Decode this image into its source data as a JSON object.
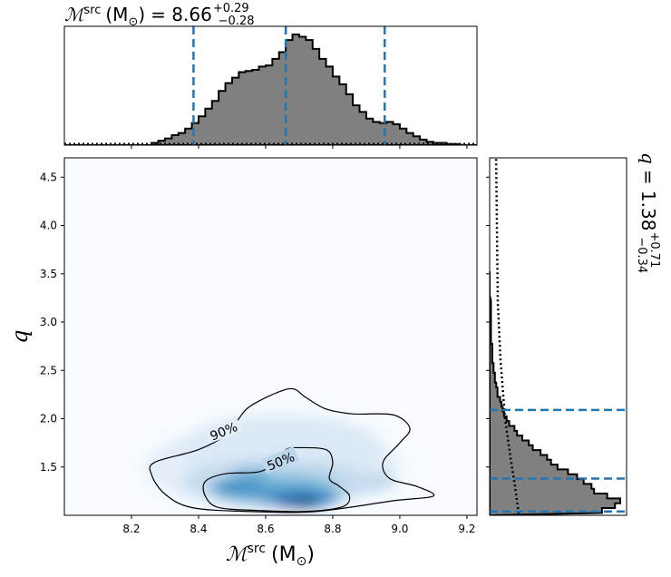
{
  "chart_data": {
    "type": "corner",
    "top_histogram": {
      "type": "histogram",
      "title_base": "ℳ",
      "title_sup": "src",
      "title_unit": "(M",
      "title_sun": "⊙",
      "title_close": ")",
      "title_eq": "= 8.66",
      "title_err_plus": "+0.29",
      "title_err_minus": "−0.28",
      "quantile_lines": [
        8.385,
        8.66,
        8.955
      ],
      "line_color": "#1f77b4",
      "fill_color": "#808080",
      "x": [
        7.99,
        8.01,
        8.03,
        8.05,
        8.07,
        8.09,
        8.11,
        8.13,
        8.15,
        8.17,
        8.19,
        8.21,
        8.23,
        8.25,
        8.27,
        8.29,
        8.31,
        8.33,
        8.35,
        8.37,
        8.39,
        8.41,
        8.43,
        8.45,
        8.47,
        8.49,
        8.51,
        8.53,
        8.55,
        8.57,
        8.59,
        8.61,
        8.63,
        8.65,
        8.67,
        8.69,
        8.71,
        8.73,
        8.75,
        8.77,
        8.79,
        8.81,
        8.83,
        8.85,
        8.87,
        8.89,
        8.91,
        8.93,
        8.95,
        8.97,
        8.99,
        9.01,
        9.03,
        9.05,
        9.07,
        9.09,
        9.11,
        9.13,
        9.15,
        9.17,
        9.19,
        9.21,
        9.23
      ],
      "density": [
        0.0,
        0.0,
        0.0,
        0.0,
        0.0,
        0.0,
        0.0,
        0.0,
        0.0,
        0.0,
        0.0,
        0.0,
        0.0,
        0.0,
        0.02,
        0.04,
        0.06,
        0.09,
        0.11,
        0.15,
        0.2,
        0.26,
        0.33,
        0.4,
        0.49,
        0.56,
        0.61,
        0.66,
        0.67,
        0.68,
        0.71,
        0.72,
        0.78,
        0.84,
        0.95,
        1.0,
        0.98,
        0.95,
        0.87,
        0.78,
        0.71,
        0.62,
        0.55,
        0.46,
        0.36,
        0.3,
        0.24,
        0.21,
        0.2,
        0.21,
        0.19,
        0.15,
        0.11,
        0.08,
        0.05,
        0.03,
        0.02,
        0.02,
        0.01,
        0.01,
        0.0,
        0.0,
        0.0
      ]
    },
    "joint": {
      "type": "heatmap",
      "xlabel_base": "ℳ",
      "xlabel_sup": "src",
      "xlabel_unit": "(M",
      "xlabel_sun": "⊙",
      "xlabel_close": ")",
      "ylabel": "q",
      "xlim": [
        8.0,
        9.23
      ],
      "ylim": [
        1.0,
        4.7
      ],
      "xticks": [
        "8.2",
        "8.4",
        "8.6",
        "8.8",
        "9.0",
        "9.2"
      ],
      "yticks": [
        "1.5",
        "2.0",
        "2.5",
        "3.0",
        "3.5",
        "4.0",
        "4.5"
      ],
      "contour_labels": [
        "90%",
        "50%"
      ],
      "contour_90": [
        [
          8.68,
          2.31
        ],
        [
          8.72,
          2.22
        ],
        [
          8.78,
          2.1
        ],
        [
          8.86,
          2.05
        ],
        [
          8.98,
          2.04
        ],
        [
          9.03,
          1.9
        ],
        [
          9.0,
          1.75
        ],
        [
          8.95,
          1.55
        ],
        [
          8.97,
          1.38
        ],
        [
          9.05,
          1.3
        ],
        [
          9.1,
          1.2
        ],
        [
          8.98,
          1.15
        ],
        [
          8.75,
          1.04
        ],
        [
          8.55,
          1.04
        ],
        [
          8.38,
          1.08
        ],
        [
          8.3,
          1.22
        ],
        [
          8.26,
          1.42
        ],
        [
          8.27,
          1.55
        ],
        [
          8.4,
          1.68
        ],
        [
          8.49,
          1.85
        ],
        [
          8.52,
          2.0
        ],
        [
          8.55,
          2.12
        ],
        [
          8.62,
          2.25
        ]
      ],
      "contour_50": [
        [
          8.7,
          1.7
        ],
        [
          8.78,
          1.68
        ],
        [
          8.8,
          1.55
        ],
        [
          8.79,
          1.38
        ],
        [
          8.82,
          1.3
        ],
        [
          8.85,
          1.2
        ],
        [
          8.83,
          1.09
        ],
        [
          8.72,
          1.04
        ],
        [
          8.58,
          1.05
        ],
        [
          8.46,
          1.08
        ],
        [
          8.42,
          1.2
        ],
        [
          8.42,
          1.35
        ],
        [
          8.48,
          1.43
        ],
        [
          8.58,
          1.45
        ],
        [
          8.63,
          1.55
        ],
        [
          8.66,
          1.68
        ]
      ]
    },
    "right_histogram": {
      "type": "histogram",
      "label_var": "q",
      "label_eq": "= 1.38",
      "label_err_plus": "+0.71",
      "label_err_minus": "−0.34",
      "quantile_lines": [
        1.04,
        1.38,
        2.09
      ],
      "line_color": "#1f77b4",
      "fill_color": "#808080",
      "q": [
        1.05,
        1.1,
        1.15,
        1.2,
        1.25,
        1.3,
        1.35,
        1.4,
        1.45,
        1.5,
        1.55,
        1.6,
        1.65,
        1.7,
        1.75,
        1.8,
        1.85,
        1.9,
        1.95,
        2.0,
        2.05,
        2.1,
        2.15,
        2.2,
        2.25,
        2.3,
        2.35,
        2.4,
        2.45,
        2.5,
        2.55,
        2.6,
        2.65,
        2.7,
        2.75,
        2.8,
        2.85,
        2.9,
        2.95,
        3.0,
        3.05,
        3.1,
        3.2,
        3.3,
        3.4,
        3.5
      ],
      "density": [
        0.86,
        0.96,
        1.0,
        0.9,
        0.8,
        0.78,
        0.72,
        0.67,
        0.6,
        0.52,
        0.47,
        0.44,
        0.39,
        0.33,
        0.3,
        0.25,
        0.21,
        0.19,
        0.15,
        0.13,
        0.11,
        0.1,
        0.09,
        0.08,
        0.06,
        0.06,
        0.05,
        0.04,
        0.04,
        0.03,
        0.03,
        0.02,
        0.02,
        0.02,
        0.02,
        0.01,
        0.01,
        0.01,
        0.01,
        0.01,
        0.01,
        0.01,
        0.01,
        0.0,
        0.0,
        0.0
      ]
    }
  }
}
